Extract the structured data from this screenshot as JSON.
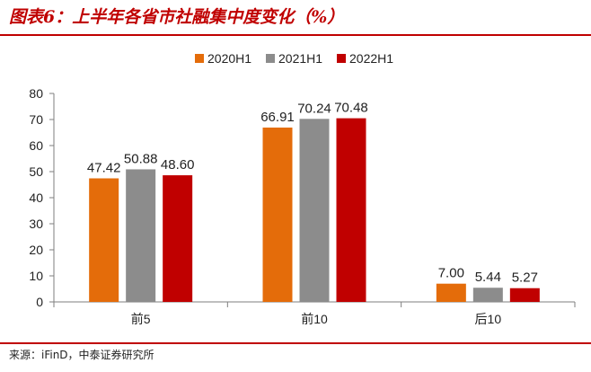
{
  "header": {
    "title": "图表6：上半年各省市社融集中度变化（%）"
  },
  "footer": {
    "source": "来源：iFinD，中泰证券研究所"
  },
  "colors": {
    "accent": "#c00000",
    "series_2020": "#e46c0a",
    "series_2021": "#8c8c8c",
    "series_2022": "#c00000"
  },
  "chart_data": {
    "type": "bar",
    "title": "",
    "xlabel": "",
    "ylabel": "",
    "categories": [
      "前5",
      "前10",
      "后10"
    ],
    "series": [
      {
        "name": "2020H1",
        "values": [
          47.42,
          66.91,
          7.0
        ],
        "labels": [
          "47.42",
          "66.91",
          "7.00"
        ]
      },
      {
        "name": "2021H1",
        "values": [
          50.88,
          70.24,
          5.44
        ],
        "labels": [
          "50.88",
          "70.24",
          "5.44"
        ]
      },
      {
        "name": "2022H1",
        "values": [
          48.6,
          70.48,
          5.27
        ],
        "labels": [
          "48.60",
          "70.48",
          "5.27"
        ]
      }
    ],
    "ylim": [
      0,
      80
    ],
    "yticks": [
      "0",
      "10",
      "20",
      "30",
      "40",
      "50",
      "60",
      "70",
      "80"
    ],
    "legend_position": "top",
    "grid": false,
    "data_labels": true
  }
}
